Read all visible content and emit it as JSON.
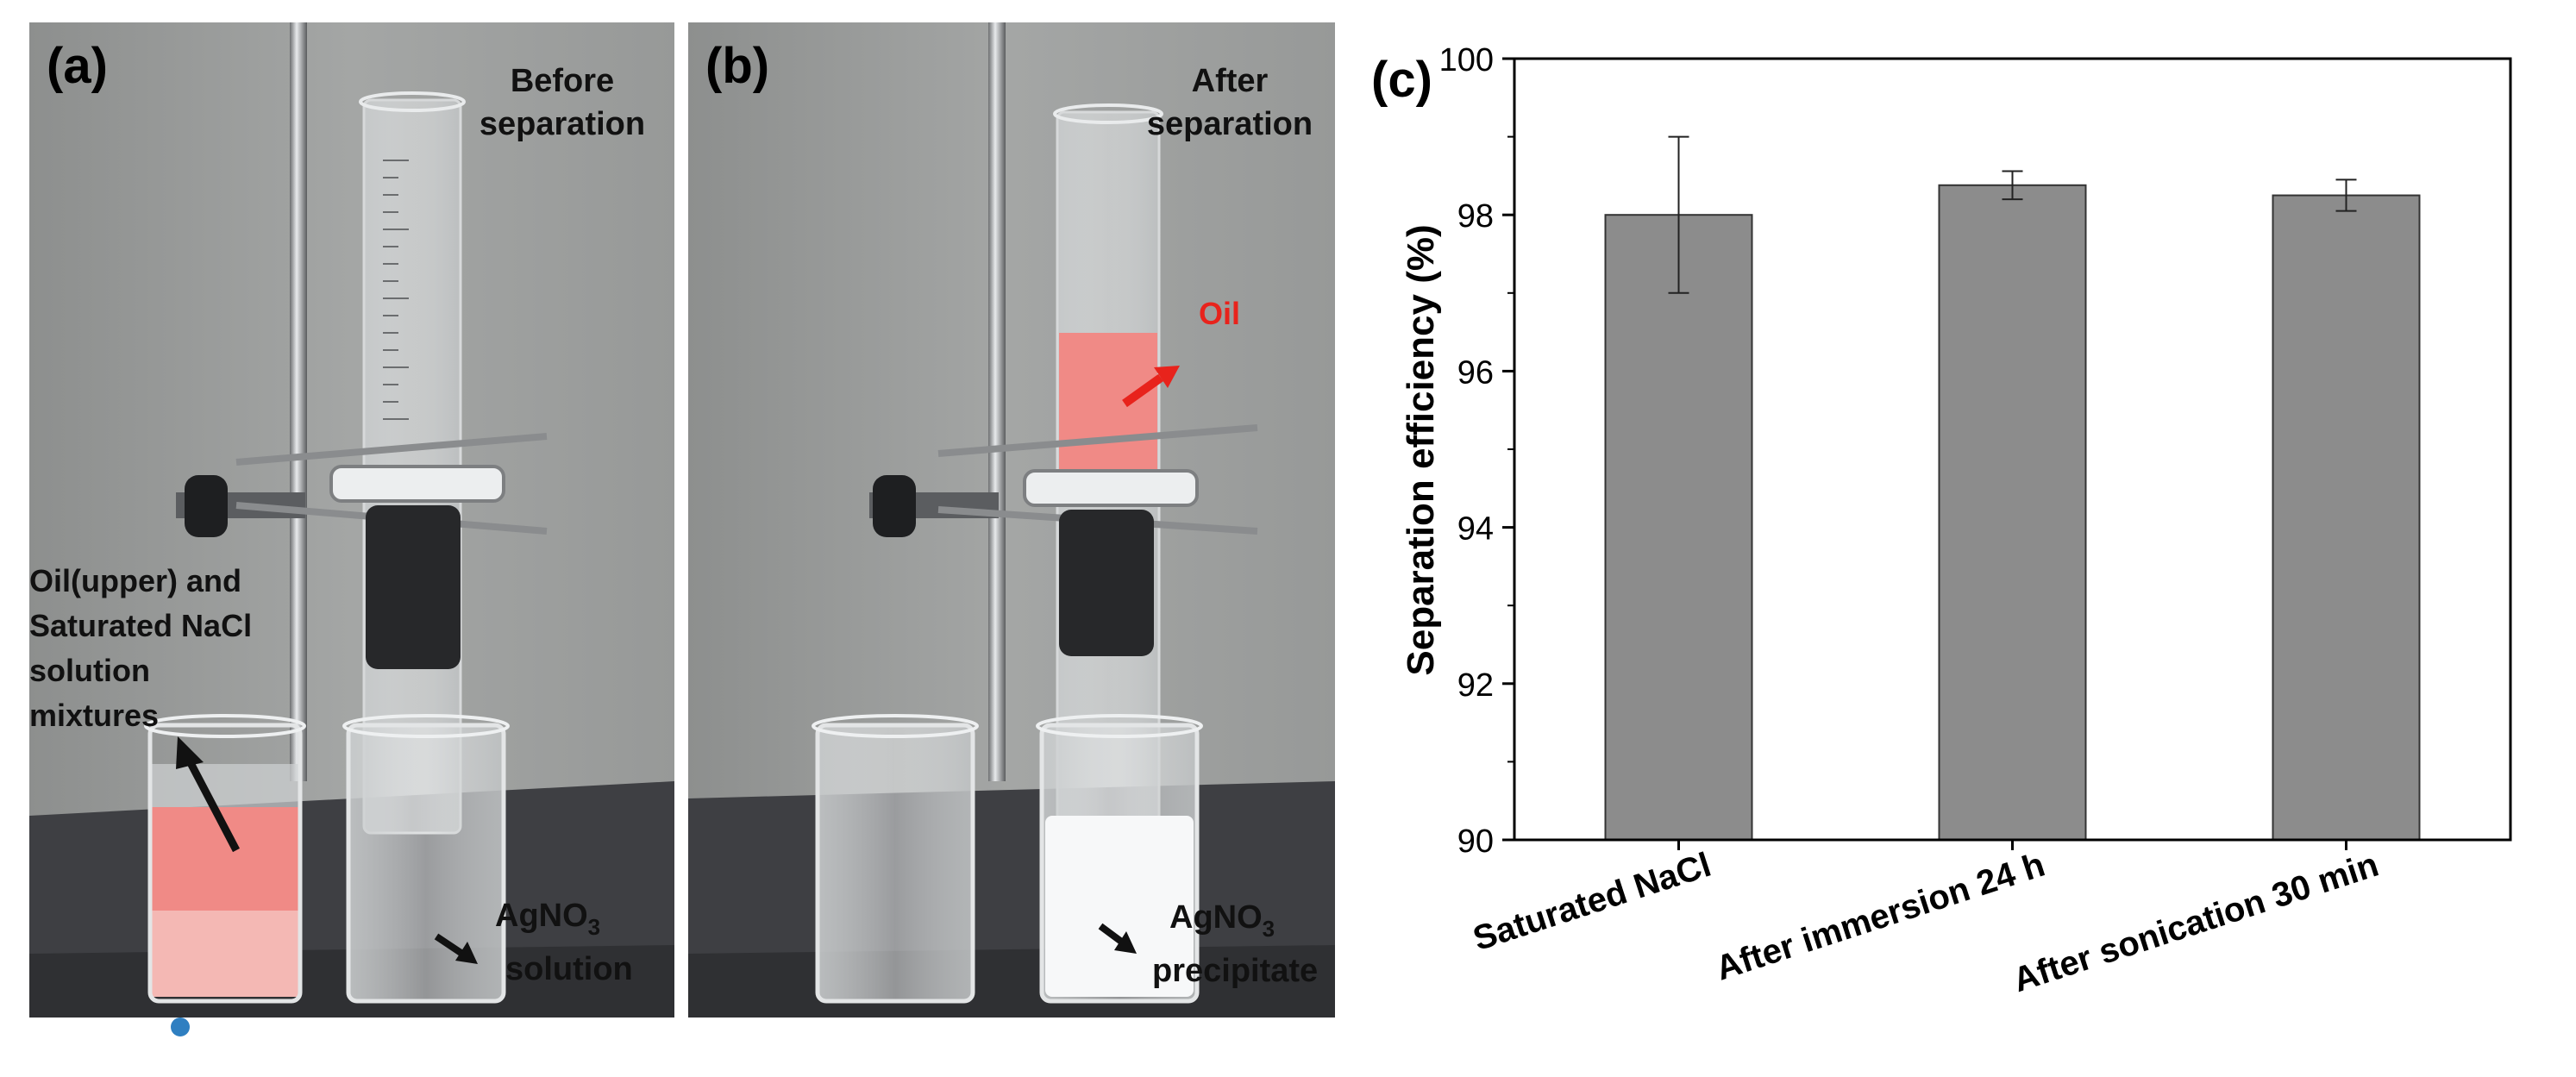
{
  "panel_a": {
    "label": "(a)",
    "caption_line1": "Before",
    "caption_line2": "separation",
    "mix_line1": "Oil(upper) and",
    "mix_line2": "Saturated NaCl",
    "mix_line3": "solution",
    "mix_line4": "mixtures",
    "agno3_base": "AgNO",
    "agno3_sub": "3",
    "agno3_line2": "solution"
  },
  "panel_b": {
    "label": "(b)",
    "caption_line1": "After",
    "caption_line2": "separation",
    "oil_label": "Oil",
    "agno3_base": "AgNO",
    "agno3_sub": "3",
    "agno3_line2": "precipitate"
  },
  "colors": {
    "wall": "#9a9c9b",
    "bench": "#3e3f43",
    "oil": "#f08a86",
    "bar": "#8c8c8c",
    "arrow_red": "#e8231c"
  },
  "chart_data": {
    "panel_label": "(c)",
    "type": "bar",
    "categories": [
      "Saturated NaCl",
      "After immersion  24 h",
      "After sonication 30 min"
    ],
    "values": [
      98.0,
      98.38,
      98.25
    ],
    "errors": [
      1.0,
      0.18,
      0.2
    ],
    "ylabel": "Separation efficiency (%)",
    "xlabel": "",
    "ylim": [
      90,
      100
    ],
    "yticks": [
      90,
      92,
      94,
      96,
      98,
      100
    ],
    "ytick_labels": [
      "90",
      "92",
      "94",
      "96",
      "98",
      "100"
    ],
    "grid": false
  }
}
